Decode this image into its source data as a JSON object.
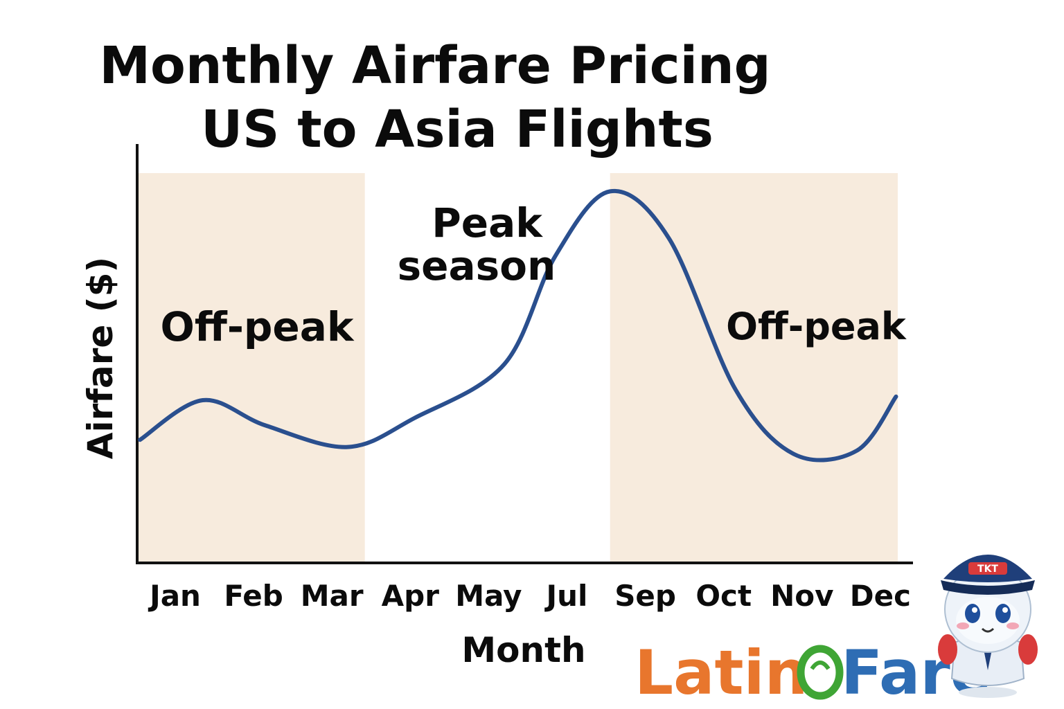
{
  "chart_data": {
    "type": "line",
    "title": "Monthly Airfare Pricing",
    "subtitle": "US to Asia Flights",
    "xlabel": "Month",
    "ylabel": "Airfare ($)",
    "categories": [
      "Jan",
      "Feb",
      "Mar",
      "Apr",
      "May",
      "Jul",
      "Sep",
      "Oct",
      "Nov",
      "Dec"
    ],
    "x_positions": [
      0,
      1,
      2,
      3,
      4,
      5,
      6,
      7,
      8,
      9
    ],
    "series": [
      {
        "name": "",
        "color": "#2a4f8e",
        "points": [
          [
            -0.45,
            34
          ],
          [
            0.35,
            45
          ],
          [
            1.15,
            38
          ],
          [
            2.2,
            32
          ],
          [
            3.05,
            40
          ],
          [
            4.2,
            55
          ],
          [
            4.85,
            85
          ],
          [
            5.55,
            103
          ],
          [
            6.3,
            90
          ],
          [
            7.15,
            48
          ],
          [
            7.9,
            30
          ],
          [
            8.7,
            31
          ],
          [
            9.2,
            46
          ]
        ]
      }
    ],
    "ylim": [
      0,
      110
    ],
    "xlim": [
      -0.48,
      9.28
    ],
    "shaded_regions": [
      {
        "label": "Off-peak",
        "x_range": [
          -0.48,
          2.42
        ],
        "color": "#f7ebdd"
      },
      {
        "label": "Off-peak",
        "x_range": [
          5.55,
          9.28
        ],
        "color": "#f7ebdd"
      }
    ],
    "annotations": [
      {
        "text": "Peak",
        "x": 4.0,
        "y": 94
      },
      {
        "text": "season",
        "x": 4.0,
        "y": 80
      },
      {
        "text": "Off-peak",
        "x": 1.0,
        "y": 62
      },
      {
        "text": "Off-peak",
        "x": 8.3,
        "y": 62
      }
    ],
    "grid": false,
    "y_ticks_shown": false
  },
  "brand": {
    "logo_part1": "Latin",
    "logo_part2": "Fare",
    "logo_color_1": "#e8762d",
    "logo_color_2": "#2e6db4",
    "logo_ring_color": "#3fa535",
    "mascot_cap_text": "TKT",
    "mascot_icon": "pilot-mascot-icon"
  }
}
